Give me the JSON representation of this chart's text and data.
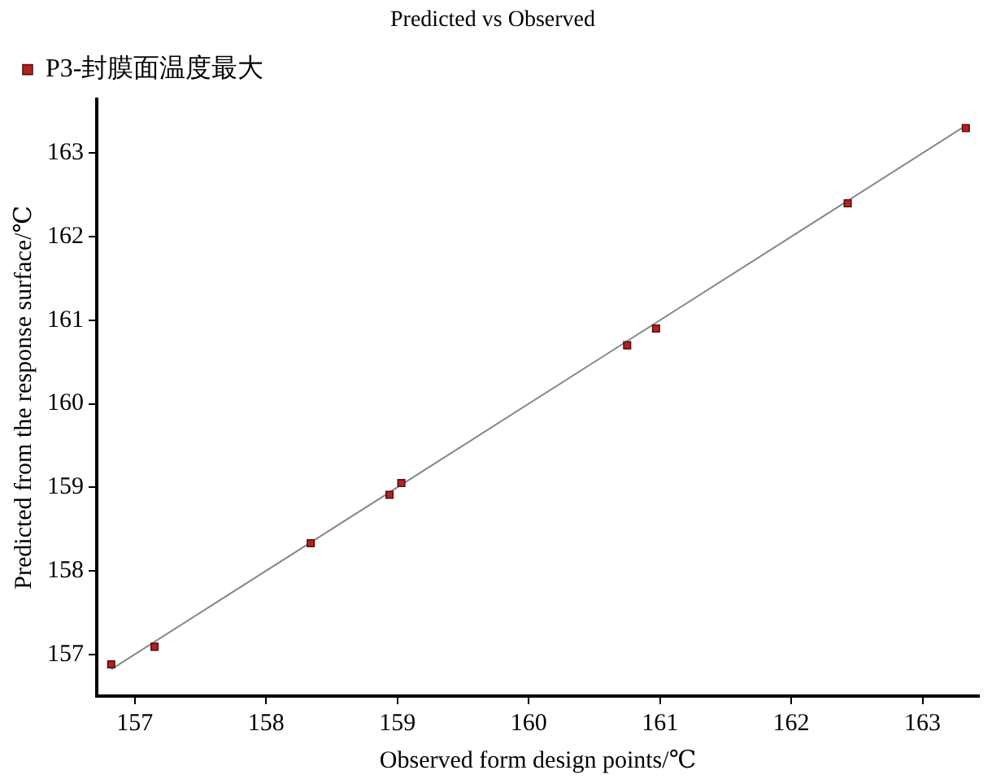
{
  "chart_data": {
    "type": "scatter",
    "title": "Predicted vs Observed",
    "xlabel": "Observed form design points/℃",
    "ylabel": "Predicted from the response surface/℃",
    "series": [
      {
        "type": "line",
        "color": "#7f8c8c",
        "x": [
          156.82,
          163.33
        ],
        "values": [
          156.82,
          163.33
        ],
        "marker": "none"
      },
      {
        "name": "P3-封膜面温度最大",
        "color": "#b22222",
        "x": [
          156.82,
          157.15,
          158.34,
          158.94,
          159.03,
          160.75,
          160.97,
          162.43,
          163.33
        ],
        "values": [
          156.88,
          157.09,
          158.33,
          158.91,
          159.05,
          160.7,
          160.9,
          162.4,
          163.3
        ]
      }
    ],
    "xlim": [
      156.71,
      163.43
    ],
    "xticks": [
      157,
      158,
      159,
      160,
      161,
      162,
      163
    ],
    "ylim": [
      156.5,
      163.65
    ],
    "yticks": [
      157,
      158,
      159,
      160,
      161,
      162,
      163
    ],
    "grid": false,
    "legend": "top left",
    "marker": "square"
  }
}
